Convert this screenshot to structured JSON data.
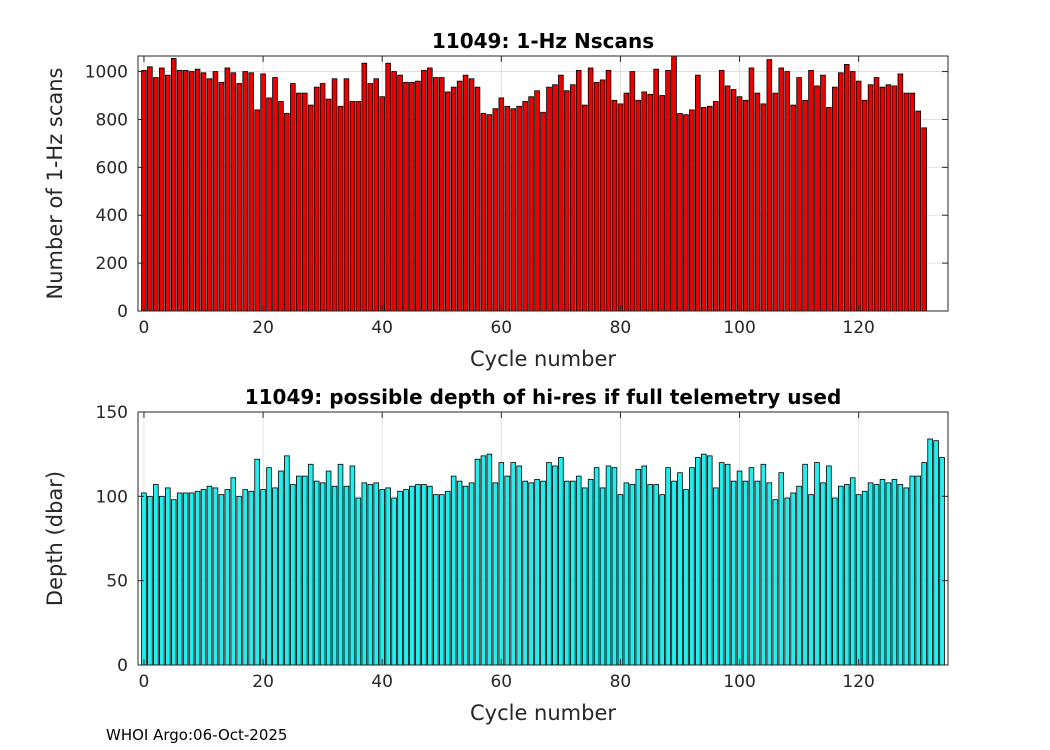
{
  "footer": "WHOI Argo:06-Oct-2025",
  "chart_data": [
    {
      "type": "bar",
      "title": "11049: 1-Hz Nscans",
      "xlabel": "Cycle number",
      "ylabel": "Number of 1-Hz scans",
      "color": "#ee0000",
      "xlim": [
        -1,
        135
      ],
      "ylim": [
        0,
        1065
      ],
      "xticks": [
        0,
        20,
        40,
        60,
        80,
        100,
        120
      ],
      "yticks": [
        0,
        200,
        400,
        600,
        800,
        1000
      ],
      "grid": true,
      "x_start": 0,
      "values": [
        1005,
        1020,
        975,
        1015,
        985,
        1055,
        1005,
        1005,
        1000,
        1010,
        995,
        970,
        1000,
        955,
        1015,
        995,
        950,
        1000,
        995,
        840,
        990,
        890,
        975,
        875,
        825,
        950,
        910,
        910,
        860,
        935,
        950,
        885,
        970,
        855,
        970,
        875,
        875,
        1035,
        950,
        970,
        895,
        1035,
        1000,
        985,
        955,
        955,
        960,
        1005,
        1015,
        975,
        975,
        915,
        935,
        960,
        985,
        970,
        935,
        825,
        820,
        845,
        890,
        855,
        845,
        855,
        875,
        895,
        920,
        830,
        935,
        945,
        985,
        920,
        945,
        1005,
        860,
        1015,
        955,
        965,
        1005,
        880,
        865,
        910,
        1000,
        880,
        915,
        905,
        1010,
        900,
        1005,
        1065,
        825,
        820,
        840,
        985,
        850,
        855,
        875,
        1005,
        940,
        925,
        895,
        880,
        1015,
        910,
        865,
        1050,
        910,
        1015,
        1000,
        860,
        975,
        880,
        1005,
        940,
        985,
        850,
        935,
        995,
        1030,
        1000,
        960,
        880,
        945,
        975,
        935,
        945,
        940,
        990,
        910,
        910,
        835,
        765
      ]
    },
    {
      "type": "bar",
      "title": "11049: possible depth of hi-res if full telemetry used",
      "xlabel": "Cycle number",
      "ylabel": "Depth (dbar)",
      "color": "#22eeee",
      "xlim": [
        -1,
        135
      ],
      "ylim": [
        0,
        150
      ],
      "xticks": [
        0,
        20,
        40,
        60,
        80,
        100,
        120
      ],
      "yticks": [
        0,
        50,
        100,
        150
      ],
      "grid": true,
      "x_start": 0,
      "values": [
        102,
        100,
        107,
        100,
        105,
        98,
        102,
        102,
        102,
        103,
        104,
        106,
        105,
        101,
        104,
        111,
        100,
        104,
        103,
        122,
        104,
        117,
        105,
        115,
        124,
        107,
        112,
        112,
        119,
        109,
        108,
        115,
        106,
        119,
        106,
        118,
        99,
        108,
        107,
        108,
        104,
        105,
        99,
        103,
        104,
        106,
        107,
        107,
        106,
        101,
        101,
        103,
        112,
        109,
        106,
        108,
        122,
        124,
        125,
        108,
        120,
        112,
        120,
        118,
        109,
        108,
        110,
        109,
        120,
        118,
        123,
        109,
        109,
        112,
        105,
        110,
        117,
        105,
        118,
        117,
        101,
        108,
        107,
        116,
        118,
        107,
        107,
        101,
        117,
        109,
        114,
        104,
        117,
        123,
        125,
        124,
        105,
        120,
        119,
        109,
        115,
        109,
        117,
        109,
        119,
        108,
        98,
        114,
        99,
        102,
        106,
        119,
        101,
        120,
        108,
        118,
        99,
        106,
        107,
        111,
        101,
        103,
        108,
        107,
        110,
        108,
        110,
        107,
        105,
        112,
        112,
        120,
        134,
        133,
        123
      ]
    }
  ]
}
